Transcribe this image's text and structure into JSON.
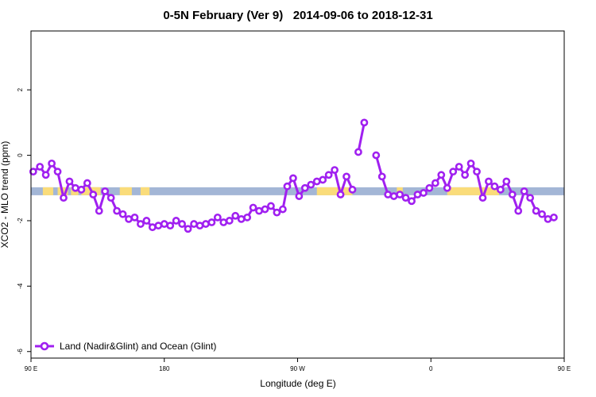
{
  "chart_data": {
    "type": "line",
    "title": "0-5N February (Ver 9)   2014-09-06 to 2018-12-31",
    "xlabel": "Longitude (deg E)",
    "ylabel": "XCO2 - MLO trend (ppm)",
    "xlim": [
      90,
      450
    ],
    "ylim": [
      -6.2,
      3.8
    ],
    "x_ticks": [
      {
        "value": 90,
        "label": "90 E"
      },
      {
        "value": 180,
        "label": "180"
      },
      {
        "value": 270,
        "label": "90 W"
      },
      {
        "value": 360,
        "label": "0"
      },
      {
        "value": 450,
        "label": "90 E"
      },
      {
        "value": 540,
        "label": "180"
      }
    ],
    "y_ticks": [
      {
        "value": -6,
        "label": "-6"
      },
      {
        "value": -4,
        "label": "-4"
      },
      {
        "value": -2,
        "label": "-2"
      },
      {
        "value": 0,
        "label": "0"
      },
      {
        "value": 2,
        "label": "2"
      }
    ],
    "grid": false,
    "legend": {
      "position": "bottom-left",
      "entries": [
        "Land (Nadir&Glint) and Ocean (Glint)"
      ]
    },
    "colors": {
      "series": "#a020f0",
      "ocean": "#a3b6d6",
      "land": "#fadc7a"
    },
    "surface_band": {
      "y_center": -1.1,
      "land_segments": [
        [
          98,
          105
        ],
        [
          108,
          115
        ],
        [
          117,
          122
        ],
        [
          124,
          130
        ],
        [
          129,
          137
        ],
        [
          283,
          307
        ],
        [
          337,
          341
        ],
        [
          371,
          406
        ],
        [
          490,
          496
        ],
        [
          510,
          518
        ],
        [
          524,
          530
        ]
      ]
    },
    "series": [
      {
        "name": "Land (Nadir&Glint) and Ocean (Glint)",
        "segments": [
          [
            [
              91.5,
              -0.5
            ],
            [
              96,
              -0.35
            ],
            [
              100,
              -0.6
            ],
            [
              104,
              -0.25
            ],
            [
              108,
              -0.5
            ],
            [
              112,
              -1.3
            ],
            [
              116,
              -0.8
            ],
            [
              120,
              -1.0
            ],
            [
              124,
              -1.05
            ],
            [
              128,
              -0.85
            ],
            [
              132,
              -1.2
            ],
            [
              136,
              -1.7
            ],
            [
              140,
              -1.1
            ],
            [
              144,
              -1.3
            ],
            [
              148,
              -1.7
            ],
            [
              152,
              -1.8
            ],
            [
              156,
              -1.95
            ],
            [
              160,
              -1.9
            ],
            [
              164,
              -2.1
            ],
            [
              168,
              -2.0
            ],
            [
              172,
              -2.2
            ],
            [
              176,
              -2.15
            ],
            [
              180,
              -2.1
            ],
            [
              184,
              -2.15
            ],
            [
              188,
              -2.0
            ],
            [
              192,
              -2.1
            ],
            [
              196,
              -2.25
            ],
            [
              200,
              -2.1
            ],
            [
              204,
              -2.15
            ],
            [
              208,
              -2.1
            ],
            [
              212,
              -2.05
            ],
            [
              216,
              -1.9
            ],
            [
              220,
              -2.05
            ],
            [
              224,
              -2.0
            ],
            [
              228,
              -1.85
            ],
            [
              232,
              -1.95
            ],
            [
              236,
              -1.9
            ],
            [
              240,
              -1.6
            ],
            [
              244,
              -1.7
            ],
            [
              248,
              -1.65
            ],
            [
              252,
              -1.55
            ],
            [
              256,
              -1.75
            ],
            [
              260,
              -1.65
            ],
            [
              263,
              -0.95
            ],
            [
              267,
              -0.7
            ],
            [
              271,
              -1.25
            ],
            [
              275,
              -1.0
            ],
            [
              279,
              -0.9
            ],
            [
              283,
              -0.8
            ],
            [
              287,
              -0.75
            ],
            [
              291,
              -0.6
            ],
            [
              295,
              -0.45
            ],
            [
              299,
              -1.2
            ],
            [
              303,
              -0.65
            ],
            [
              307,
              -1.05
            ]
          ],
          [
            [
              311,
              0.1
            ],
            [
              315,
              1.0
            ]
          ],
          [
            [
              323,
              0.0
            ],
            [
              327,
              -0.65
            ],
            [
              331,
              -1.2
            ],
            [
              335,
              -1.25
            ],
            [
              339,
              -1.2
            ],
            [
              343,
              -1.3
            ],
            [
              347,
              -1.4
            ],
            [
              351,
              -1.2
            ],
            [
              355,
              -1.15
            ],
            [
              359,
              -1.0
            ],
            [
              363,
              -0.85
            ],
            [
              367,
              -0.6
            ],
            [
              371,
              -1.0
            ],
            [
              375,
              -0.5
            ],
            [
              379,
              -0.35
            ],
            [
              383,
              -0.6
            ],
            [
              387,
              -0.25
            ],
            [
              391,
              -0.5
            ],
            [
              395,
              -1.3
            ],
            [
              399,
              -0.8
            ],
            [
              403,
              -0.95
            ],
            [
              407,
              -1.05
            ],
            [
              411,
              -0.8
            ],
            [
              415,
              -1.2
            ],
            [
              419,
              -1.7
            ],
            [
              423,
              -1.1
            ],
            [
              427,
              -1.3
            ],
            [
              431,
              -1.7
            ],
            [
              435,
              -1.8
            ],
            [
              439,
              -1.95
            ],
            [
              443,
              -1.9
            ]
          ]
        ]
      }
    ]
  }
}
